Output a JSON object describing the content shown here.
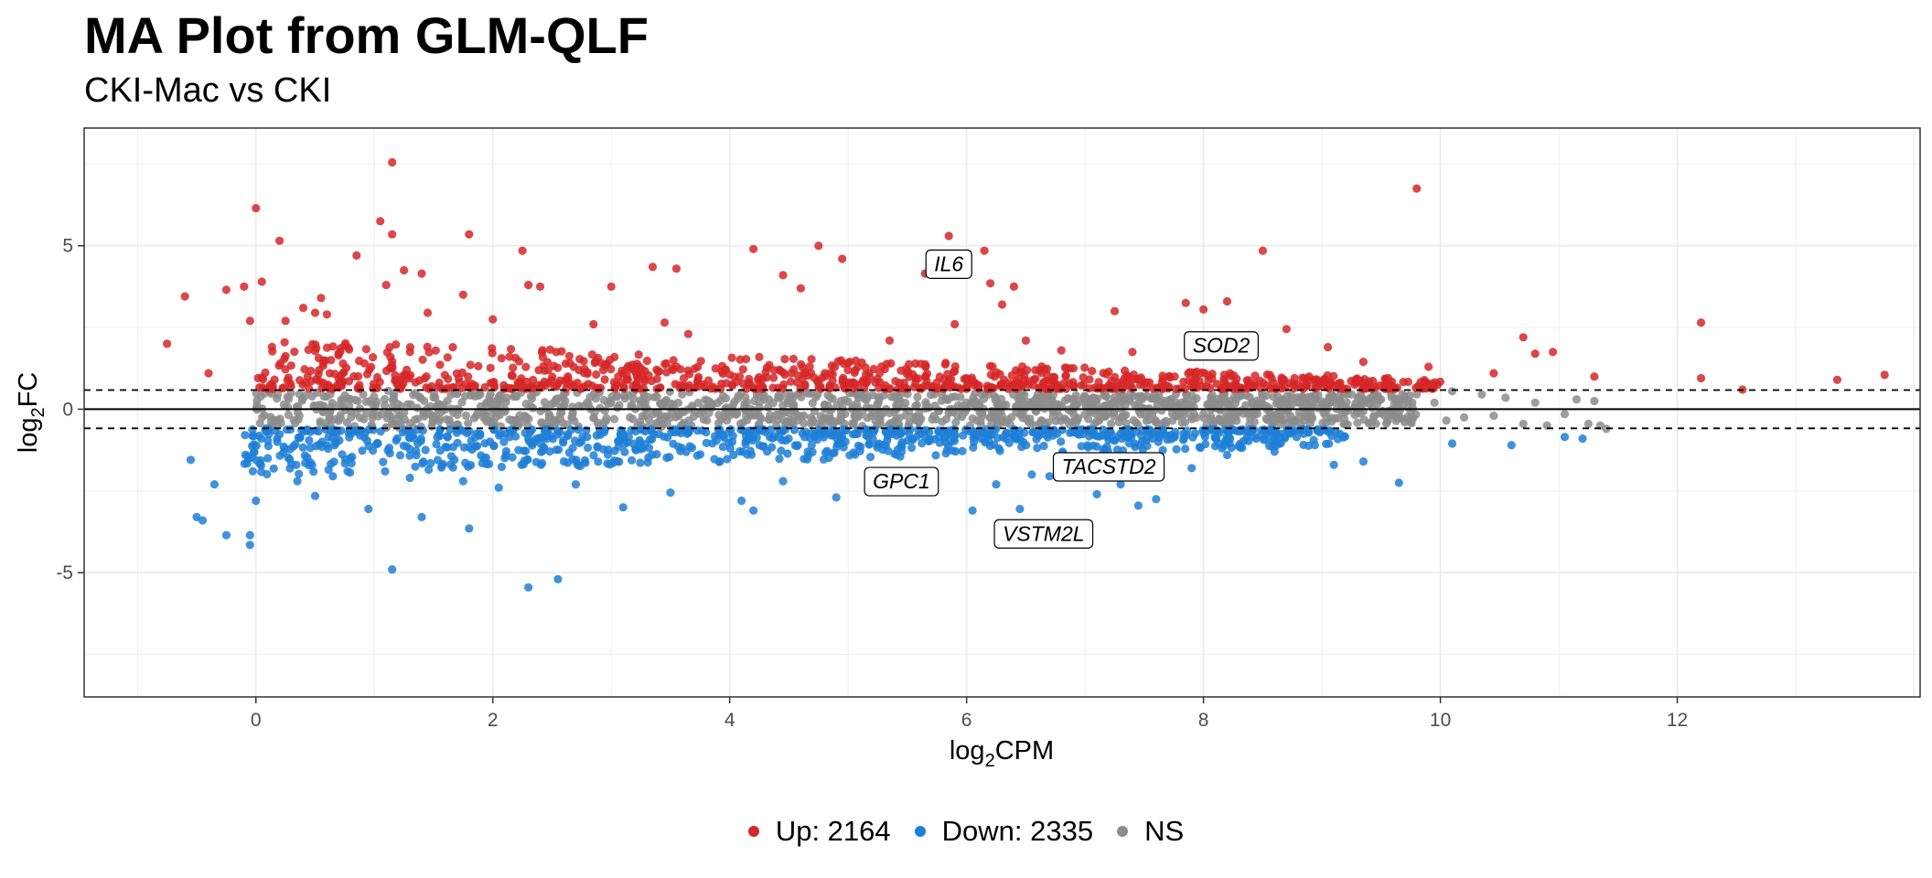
{
  "chart_data": {
    "type": "scatter",
    "title": "MA Plot from GLM-QLF",
    "subtitle": "CKI-Mac vs CKI",
    "xlabel": {
      "base": "log",
      "sub": "2",
      "rest": "CPM"
    },
    "ylabel": {
      "base": "log",
      "sub": "2",
      "rest": "FC"
    },
    "xlim": [
      -1.45,
      14.05
    ],
    "ylim": [
      -8.8,
      8.6
    ],
    "x_ticks": [
      "0",
      "2",
      "4",
      "6",
      "8",
      "10",
      "12"
    ],
    "y_ticks": [
      "-5",
      "0",
      "5"
    ],
    "x_tick_values": [
      0,
      2,
      4,
      6,
      8,
      10,
      12
    ],
    "y_tick_values": [
      -5,
      0,
      5
    ],
    "grid": true,
    "hlines": [
      {
        "y": 0,
        "style": "solid"
      },
      {
        "y": 0.585,
        "style": "dashed"
      },
      {
        "y": -0.585,
        "style": "dashed"
      }
    ],
    "legend_position": "bottom",
    "colors": {
      "up": "#d62728",
      "down": "#1f7fd6",
      "ns": "#8c8c8c"
    },
    "legend": [
      {
        "key": "up",
        "label": "Up: 2164"
      },
      {
        "key": "down",
        "label": "Down: 2335"
      },
      {
        "key": "ns",
        "label": "NS"
      }
    ],
    "series": [
      {
        "name": "Up: 2164",
        "key": "up",
        "points": [
          [
            -0.75,
            2.0
          ],
          [
            -0.6,
            3.45
          ],
          [
            -0.4,
            1.1
          ],
          [
            -0.25,
            3.65
          ],
          [
            -0.1,
            3.75
          ],
          [
            -0.05,
            2.7
          ],
          [
            0.0,
            6.15
          ],
          [
            0.05,
            3.9
          ],
          [
            0.2,
            5.15
          ],
          [
            0.25,
            2.7
          ],
          [
            0.4,
            3.1
          ],
          [
            0.5,
            2.95
          ],
          [
            0.55,
            3.4
          ],
          [
            0.6,
            2.9
          ],
          [
            0.75,
            1.95
          ],
          [
            0.85,
            4.7
          ],
          [
            1.05,
            5.75
          ],
          [
            1.1,
            3.8
          ],
          [
            1.15,
            5.35
          ],
          [
            1.15,
            7.55
          ],
          [
            1.25,
            4.25
          ],
          [
            1.4,
            4.15
          ],
          [
            1.45,
            2.95
          ],
          [
            1.75,
            3.5
          ],
          [
            1.8,
            5.35
          ],
          [
            2.0,
            2.75
          ],
          [
            2.25,
            4.85
          ],
          [
            2.3,
            3.8
          ],
          [
            2.4,
            3.75
          ],
          [
            2.85,
            2.6
          ],
          [
            3.0,
            3.75
          ],
          [
            3.35,
            4.35
          ],
          [
            3.45,
            2.65
          ],
          [
            3.55,
            4.3
          ],
          [
            3.65,
            2.3
          ],
          [
            4.2,
            4.9
          ],
          [
            4.45,
            4.1
          ],
          [
            4.6,
            3.7
          ],
          [
            4.75,
            5.0
          ],
          [
            4.95,
            4.6
          ],
          [
            5.35,
            2.1
          ],
          [
            5.65,
            4.15
          ],
          [
            5.85,
            5.3
          ],
          [
            5.9,
            2.6
          ],
          [
            6.15,
            4.85
          ],
          [
            6.2,
            3.85
          ],
          [
            6.3,
            3.2
          ],
          [
            6.4,
            3.75
          ],
          [
            6.5,
            2.1
          ],
          [
            6.8,
            1.8
          ],
          [
            7.25,
            3.0
          ],
          [
            7.4,
            1.75
          ],
          [
            7.85,
            3.25
          ],
          [
            8.0,
            3.05
          ],
          [
            8.2,
            3.3
          ],
          [
            8.5,
            4.85
          ],
          [
            8.7,
            2.45
          ],
          [
            9.05,
            1.9
          ],
          [
            9.35,
            1.45
          ],
          [
            9.8,
            6.75
          ],
          [
            9.9,
            1.3
          ],
          [
            10.45,
            1.1
          ],
          [
            10.7,
            2.2
          ],
          [
            10.8,
            1.7
          ],
          [
            10.95,
            1.75
          ],
          [
            11.3,
            1.0
          ],
          [
            12.2,
            2.65
          ],
          [
            12.2,
            0.95
          ],
          [
            12.55,
            0.6
          ],
          [
            13.35,
            0.9
          ],
          [
            13.75,
            1.05
          ]
        ],
        "bulk": {
          "x": [
            0.0,
            10.0
          ],
          "y": [
            0.62,
            2.3
          ]
        }
      },
      {
        "name": "Down: 2335",
        "key": "down",
        "points": [
          [
            -0.55,
            -1.55
          ],
          [
            -0.5,
            -3.3
          ],
          [
            -0.45,
            -3.4
          ],
          [
            -0.35,
            -2.3
          ],
          [
            -0.25,
            -3.85
          ],
          [
            -0.05,
            -4.15
          ],
          [
            -0.05,
            -3.85
          ],
          [
            0.0,
            -2.8
          ],
          [
            0.1,
            -1.5
          ],
          [
            0.35,
            -2.2
          ],
          [
            0.5,
            -2.65
          ],
          [
            0.65,
            -2.05
          ],
          [
            0.95,
            -3.05
          ],
          [
            1.15,
            -4.9
          ],
          [
            1.3,
            -2.1
          ],
          [
            1.4,
            -3.3
          ],
          [
            1.75,
            -2.2
          ],
          [
            1.8,
            -3.65
          ],
          [
            2.05,
            -2.4
          ],
          [
            2.3,
            -5.45
          ],
          [
            2.55,
            -5.2
          ],
          [
            2.7,
            -2.3
          ],
          [
            3.1,
            -3.0
          ],
          [
            3.5,
            -2.55
          ],
          [
            4.1,
            -2.8
          ],
          [
            4.2,
            -3.1
          ],
          [
            4.45,
            -2.2
          ],
          [
            4.9,
            -2.7
          ],
          [
            5.2,
            -2.1
          ],
          [
            5.7,
            -2.5
          ],
          [
            6.05,
            -3.1
          ],
          [
            6.25,
            -2.3
          ],
          [
            6.45,
            -3.05
          ],
          [
            6.55,
            -2.0
          ],
          [
            6.7,
            -2.05
          ],
          [
            7.1,
            -2.6
          ],
          [
            7.3,
            -2.3
          ],
          [
            7.45,
            -2.95
          ],
          [
            7.6,
            -2.75
          ],
          [
            7.9,
            -1.8
          ],
          [
            8.2,
            -1.4
          ],
          [
            8.6,
            -1.3
          ],
          [
            9.1,
            -1.7
          ],
          [
            9.35,
            -1.6
          ],
          [
            9.65,
            -2.25
          ],
          [
            10.1,
            -1.05
          ],
          [
            10.6,
            -1.1
          ],
          [
            11.05,
            -0.85
          ],
          [
            11.2,
            -0.9
          ]
        ],
        "bulk": {
          "x": [
            -0.1,
            9.2
          ],
          "y": [
            -2.2,
            -0.62
          ]
        }
      },
      {
        "name": "NS",
        "key": "ns",
        "points": [
          [
            9.25,
            0.45
          ],
          [
            9.5,
            0.3
          ],
          [
            9.7,
            -0.4
          ],
          [
            9.95,
            0.2
          ],
          [
            10.05,
            -0.35
          ],
          [
            10.1,
            0.55
          ],
          [
            10.2,
            -0.25
          ],
          [
            10.35,
            0.45
          ],
          [
            10.45,
            -0.2
          ],
          [
            10.55,
            0.35
          ],
          [
            10.7,
            -0.45
          ],
          [
            10.8,
            0.2
          ],
          [
            10.9,
            -0.5
          ],
          [
            11.05,
            -0.15
          ],
          [
            11.15,
            0.3
          ],
          [
            11.25,
            -0.45
          ],
          [
            11.3,
            0.25
          ],
          [
            11.35,
            -0.5
          ],
          [
            11.4,
            -0.6
          ]
        ],
        "bulk": {
          "x": [
            0.0,
            9.8
          ],
          "y": [
            -0.58,
            0.58
          ]
        }
      }
    ],
    "annotations": [
      {
        "label": "IL6",
        "x": 5.85,
        "y": 4.45
      },
      {
        "label": "SOD2",
        "x": 8.15,
        "y": 1.95
      },
      {
        "label": "GPC1",
        "x": 5.45,
        "y": -2.2
      },
      {
        "label": "TACSTD2",
        "x": 7.2,
        "y": -1.75
      },
      {
        "label": "VSTM2L",
        "x": 6.65,
        "y": -3.8
      }
    ]
  }
}
